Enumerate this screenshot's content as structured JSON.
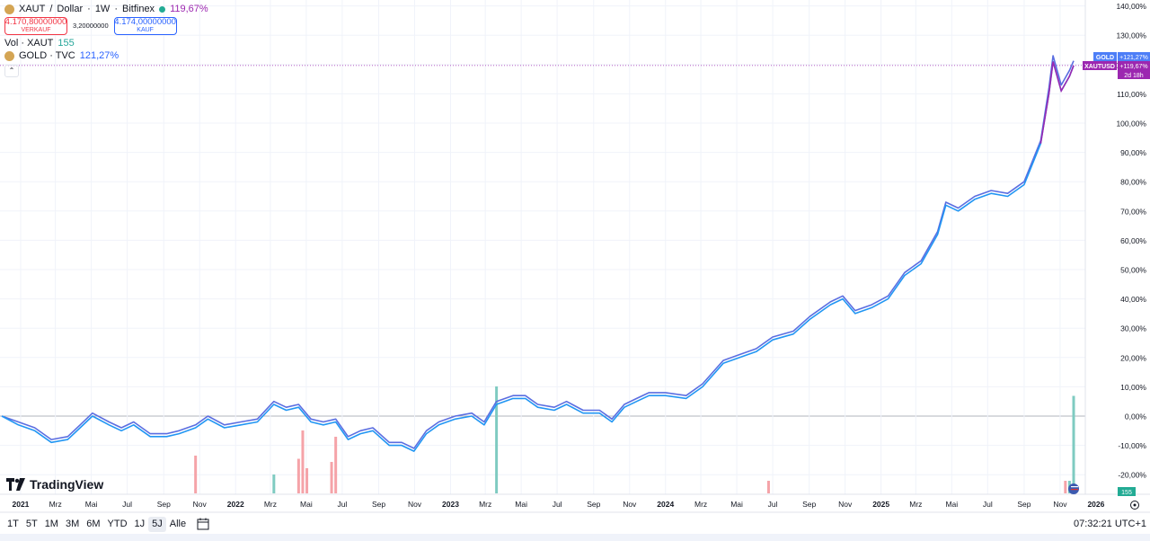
{
  "header": {
    "symbol": "XAUT",
    "separator": "/",
    "quote": "Dollar",
    "interval": "1W",
    "exchange": "Bitfinex",
    "change_pct": "119,67%",
    "sell_price": "4.170,80000000",
    "sell_label": "VERKAUF",
    "spread": "3,20000000",
    "buy_price": "4.174,00000000",
    "buy_label": "KAUF",
    "vol_label": "Vol · XAUT",
    "vol_value": "155",
    "compare_symbol": "GOLD · TVC",
    "compare_pct": "121,27%"
  },
  "price_tags": {
    "gold_label": "GOLD",
    "gold_value": "+121,27%",
    "xaut_label": "XAUTUSD",
    "xaut_value": "+119,67%",
    "countdown": "2d 18h",
    "volume_value": "155"
  },
  "colors": {
    "xaut_line": "#2196f3",
    "gold_line": "#5b6ee1",
    "tail_line": "#9c27b0",
    "gold_tag": "#4d7ef7",
    "xaut_tag": "#9c27b0",
    "vol_up": "#7fcbc1",
    "vol_down": "#f5a3a8",
    "zero_line": "#b2b5be",
    "grid": "#f0f3fa"
  },
  "time_axis": {
    "labels": [
      "2021",
      "Mrz",
      "Mai",
      "Jul",
      "Sep",
      "Nov",
      "2022",
      "Mrz",
      "Mai",
      "Jul",
      "Sep",
      "Nov",
      "2023",
      "Mrz",
      "Mai",
      "Jul",
      "Sep",
      "Nov",
      "2024",
      "Mrz",
      "Mai",
      "Jul",
      "Sep",
      "Nov",
      "2025",
      "Mrz",
      "Mai",
      "Jul",
      "Sep",
      "Nov",
      "2026"
    ]
  },
  "bottom_bar": {
    "ranges": [
      "1T",
      "5T",
      "1M",
      "3M",
      "6M",
      "YTD",
      "1J",
      "5J",
      "Alle"
    ],
    "active_range": "5J",
    "clock": "07:32:21 UTC+1",
    "logo_text": "TradingView"
  },
  "chart_data": {
    "type": "line",
    "title": "XAUT / Dollar · 1W · Bitfinex",
    "x_start": "2020-11-30",
    "x_end": "2025-11-24",
    "ylabel": "",
    "y_unit": "%",
    "ylim": [
      -24,
      140
    ],
    "y_ticks": [
      "140,00%",
      "130,00%",
      "120,00%",
      "110,00%",
      "100,00%",
      "90,00%",
      "80,00%",
      "70,00%",
      "60,00%",
      "50,00%",
      "40,00%",
      "30,00%",
      "20,00%",
      "10,00%",
      "0,00%",
      "-10,00%",
      "-20,00%"
    ],
    "y_tick_values": [
      140,
      130,
      120,
      110,
      100,
      90,
      80,
      70,
      60,
      50,
      40,
      30,
      20,
      10,
      0,
      -10,
      -20
    ],
    "grid": true,
    "series": [
      {
        "name": "XAUTUSD",
        "points": [
          [
            "2020-11-30",
            0
          ],
          [
            "2020-12-28",
            -3
          ],
          [
            "2021-01-25",
            -5
          ],
          [
            "2021-02-22",
            -9
          ],
          [
            "2021-03-22",
            -8
          ],
          [
            "2021-04-12",
            -4
          ],
          [
            "2021-05-03",
            0
          ],
          [
            "2021-05-31",
            -3
          ],
          [
            "2021-06-21",
            -5
          ],
          [
            "2021-07-12",
            -3
          ],
          [
            "2021-08-09",
            -7
          ],
          [
            "2021-09-06",
            -7
          ],
          [
            "2021-09-27",
            -6
          ],
          [
            "2021-10-25",
            -4
          ],
          [
            "2021-11-15",
            -1
          ],
          [
            "2021-12-13",
            -4
          ],
          [
            "2022-01-10",
            -3
          ],
          [
            "2022-02-07",
            -2
          ],
          [
            "2022-03-07",
            4
          ],
          [
            "2022-03-28",
            2
          ],
          [
            "2022-04-18",
            3
          ],
          [
            "2022-05-09",
            -2
          ],
          [
            "2022-05-30",
            -3
          ],
          [
            "2022-06-20",
            -2
          ],
          [
            "2022-07-11",
            -8
          ],
          [
            "2022-08-01",
            -6
          ],
          [
            "2022-08-22",
            -5
          ],
          [
            "2022-09-19",
            -10
          ],
          [
            "2022-10-10",
            -10
          ],
          [
            "2022-10-31",
            -12
          ],
          [
            "2022-11-21",
            -6
          ],
          [
            "2022-12-12",
            -3
          ],
          [
            "2023-01-09",
            -1
          ],
          [
            "2023-02-06",
            0
          ],
          [
            "2023-02-27",
            -3
          ],
          [
            "2023-03-20",
            4
          ],
          [
            "2023-04-17",
            6
          ],
          [
            "2023-05-08",
            6
          ],
          [
            "2023-05-29",
            3
          ],
          [
            "2023-06-26",
            2
          ],
          [
            "2023-07-17",
            4
          ],
          [
            "2023-08-14",
            1
          ],
          [
            "2023-09-11",
            1
          ],
          [
            "2023-10-02",
            -2
          ],
          [
            "2023-10-23",
            3
          ],
          [
            "2023-11-13",
            5
          ],
          [
            "2023-12-04",
            7
          ],
          [
            "2024-01-01",
            7
          ],
          [
            "2024-02-05",
            6
          ],
          [
            "2024-03-04",
            10
          ],
          [
            "2024-04-08",
            18
          ],
          [
            "2024-05-06",
            20
          ],
          [
            "2024-06-03",
            22
          ],
          [
            "2024-07-01",
            26
          ],
          [
            "2024-08-05",
            28
          ],
          [
            "2024-09-02",
            33
          ],
          [
            "2024-10-07",
            38
          ],
          [
            "2024-10-28",
            40
          ],
          [
            "2024-11-18",
            35
          ],
          [
            "2024-12-16",
            37
          ],
          [
            "2025-01-13",
            40
          ],
          [
            "2025-02-10",
            48
          ],
          [
            "2025-03-10",
            52
          ],
          [
            "2025-04-07",
            62
          ],
          [
            "2025-04-21",
            72
          ],
          [
            "2025-05-12",
            70
          ],
          [
            "2025-06-09",
            74
          ],
          [
            "2025-07-07",
            76
          ],
          [
            "2025-08-04",
            75
          ],
          [
            "2025-09-01",
            79
          ],
          [
            "2025-09-29",
            93
          ],
          [
            "2025-10-13",
            110
          ],
          [
            "2025-10-20",
            121
          ],
          [
            "2025-11-03",
            111
          ],
          [
            "2025-11-17",
            116
          ],
          [
            "2025-11-24",
            119.67
          ]
        ]
      },
      {
        "name": "GOLD",
        "points": [
          [
            "2020-11-30",
            0
          ],
          [
            "2020-12-28",
            -2
          ],
          [
            "2021-01-25",
            -4
          ],
          [
            "2021-02-22",
            -8
          ],
          [
            "2021-03-22",
            -7
          ],
          [
            "2021-04-12",
            -3
          ],
          [
            "2021-05-03",
            1
          ],
          [
            "2021-05-31",
            -2
          ],
          [
            "2021-06-21",
            -4
          ],
          [
            "2021-07-12",
            -2
          ],
          [
            "2021-08-09",
            -6
          ],
          [
            "2021-09-06",
            -6
          ],
          [
            "2021-09-27",
            -5
          ],
          [
            "2021-10-25",
            -3
          ],
          [
            "2021-11-15",
            0
          ],
          [
            "2021-12-13",
            -3
          ],
          [
            "2022-01-10",
            -2
          ],
          [
            "2022-02-07",
            -1
          ],
          [
            "2022-03-07",
            5
          ],
          [
            "2022-03-28",
            3
          ],
          [
            "2022-04-18",
            4
          ],
          [
            "2022-05-09",
            -1
          ],
          [
            "2022-05-30",
            -2
          ],
          [
            "2022-06-20",
            -1
          ],
          [
            "2022-07-11",
            -7
          ],
          [
            "2022-08-01",
            -5
          ],
          [
            "2022-08-22",
            -4
          ],
          [
            "2022-09-19",
            -9
          ],
          [
            "2022-10-10",
            -9
          ],
          [
            "2022-10-31",
            -11
          ],
          [
            "2022-11-21",
            -5
          ],
          [
            "2022-12-12",
            -2
          ],
          [
            "2023-01-09",
            0
          ],
          [
            "2023-02-06",
            1
          ],
          [
            "2023-02-27",
            -2
          ],
          [
            "2023-03-20",
            5
          ],
          [
            "2023-04-17",
            7
          ],
          [
            "2023-05-08",
            7
          ],
          [
            "2023-05-29",
            4
          ],
          [
            "2023-06-26",
            3
          ],
          [
            "2023-07-17",
            5
          ],
          [
            "2023-08-14",
            2
          ],
          [
            "2023-09-11",
            2
          ],
          [
            "2023-10-02",
            -1
          ],
          [
            "2023-10-23",
            4
          ],
          [
            "2023-11-13",
            6
          ],
          [
            "2023-12-04",
            8
          ],
          [
            "2024-01-01",
            8
          ],
          [
            "2024-02-05",
            7
          ],
          [
            "2024-03-04",
            11
          ],
          [
            "2024-04-08",
            19
          ],
          [
            "2024-05-06",
            21
          ],
          [
            "2024-06-03",
            23
          ],
          [
            "2024-07-01",
            27
          ],
          [
            "2024-08-05",
            29
          ],
          [
            "2024-09-02",
            34
          ],
          [
            "2024-10-07",
            39
          ],
          [
            "2024-10-28",
            41
          ],
          [
            "2024-11-18",
            36
          ],
          [
            "2024-12-16",
            38
          ],
          [
            "2025-01-13",
            41
          ],
          [
            "2025-02-10",
            49
          ],
          [
            "2025-03-10",
            53
          ],
          [
            "2025-04-07",
            63
          ],
          [
            "2025-04-21",
            73
          ],
          [
            "2025-05-12",
            71
          ],
          [
            "2025-06-09",
            75
          ],
          [
            "2025-07-07",
            77
          ],
          [
            "2025-08-04",
            76
          ],
          [
            "2025-09-01",
            80
          ],
          [
            "2025-09-29",
            94
          ],
          [
            "2025-10-13",
            112
          ],
          [
            "2025-10-20",
            123
          ],
          [
            "2025-11-03",
            113
          ],
          [
            "2025-11-17",
            118
          ],
          [
            "2025-11-24",
            121.27
          ]
        ]
      }
    ],
    "volume": [
      {
        "date": "2021-10-25",
        "value": 60,
        "dir": "down"
      },
      {
        "date": "2022-03-07",
        "value": 30,
        "dir": "up"
      },
      {
        "date": "2022-04-18",
        "value": 55,
        "dir": "down"
      },
      {
        "date": "2022-04-25",
        "value": 100,
        "dir": "down"
      },
      {
        "date": "2022-05-02",
        "value": 40,
        "dir": "down"
      },
      {
        "date": "2022-06-13",
        "value": 50,
        "dir": "down"
      },
      {
        "date": "2022-06-20",
        "value": 90,
        "dir": "down"
      },
      {
        "date": "2023-03-20",
        "value": 170,
        "dir": "up"
      },
      {
        "date": "2024-06-24",
        "value": 20,
        "dir": "down"
      },
      {
        "date": "2025-11-10",
        "value": 20,
        "dir": "down"
      },
      {
        "date": "2025-11-17",
        "value": 20,
        "dir": "up"
      },
      {
        "date": "2025-11-24",
        "value": 155,
        "dir": "up"
      }
    ]
  }
}
